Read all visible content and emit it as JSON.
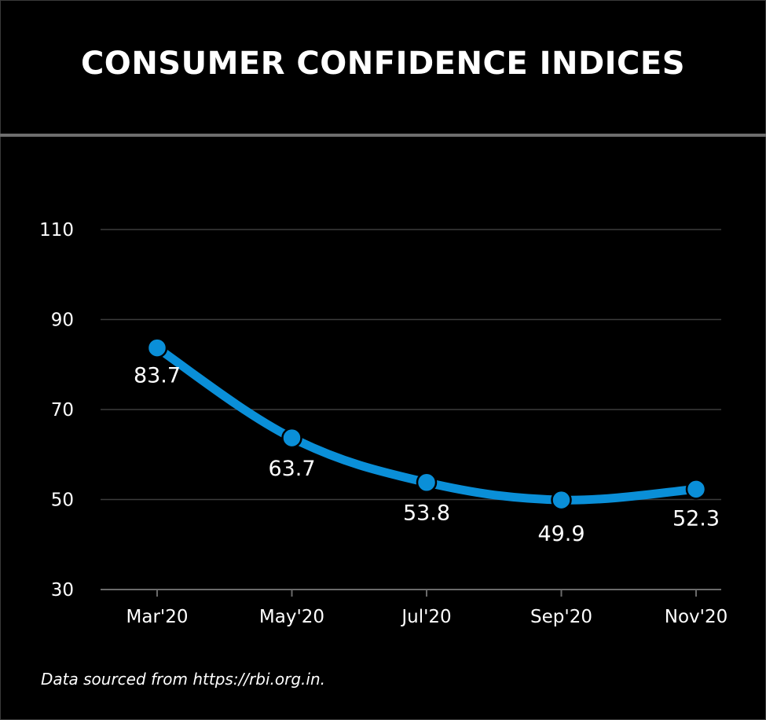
{
  "header": {
    "title": "CONSUMER CONFIDENCE INDICES"
  },
  "footer": {
    "source": "Data sourced from https://rbi.org.in."
  },
  "colors": {
    "background": "#000000",
    "line": "#0a8fd8",
    "grid": "#3c3c3c",
    "text": "#ffffff",
    "divider": "#6e6e6e"
  },
  "chart_data": {
    "type": "line",
    "title": "CONSUMER CONFIDENCE INDICES",
    "xlabel": "",
    "ylabel": "",
    "categories": [
      "Mar'20",
      "May'20",
      "Jul'20",
      "Sep'20",
      "Nov'20"
    ],
    "series": [
      {
        "values": [
          83.7,
          63.7,
          53.8,
          49.9,
          52.3
        ]
      }
    ],
    "data_labels": [
      "83.7",
      "63.7",
      "53.8",
      "49.9",
      "52.3"
    ],
    "ylim": [
      30,
      110
    ],
    "yticks": [
      30,
      50,
      70,
      90,
      110
    ],
    "grid": true,
    "smooth": true,
    "legend": "none"
  }
}
